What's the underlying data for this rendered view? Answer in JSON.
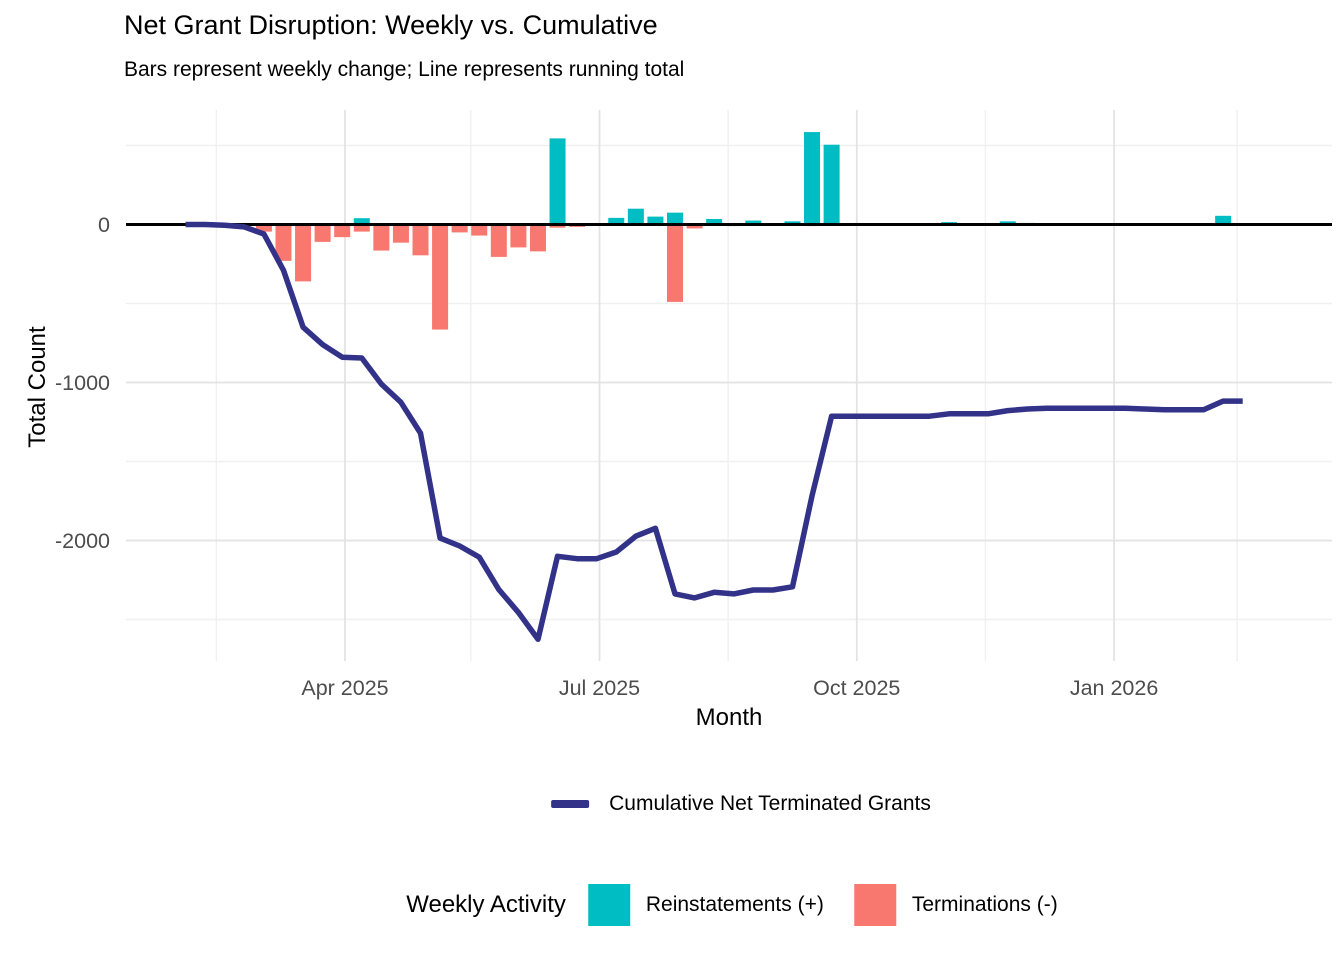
{
  "chart_data": {
    "type": "combo_bar_line",
    "title": "Net Grant Disruption: Weekly vs. Cumulative",
    "subtitle": "Bars represent weekly change; Line represents running total",
    "xlabel": "Month",
    "ylabel": "Total Count",
    "ylim": [
      -2800,
      740
    ],
    "y_ticks": [
      {
        "value": 0,
        "label": "0"
      },
      {
        "value": -1000,
        "label": "-1000"
      },
      {
        "value": -2000,
        "label": "-2000"
      }
    ],
    "y_minor_gridlines": [
      500,
      -500,
      -1500,
      -2500
    ],
    "x_ticks": [
      {
        "date": "2025-04-01",
        "label": "Apr 2025"
      },
      {
        "date": "2025-07-01",
        "label": "Jul 2025"
      },
      {
        "date": "2025-10-01",
        "label": "Oct 2025"
      },
      {
        "date": "2026-01-01",
        "label": "Jan 2026"
      }
    ],
    "x_minor_gridlines": [
      "2025-02-14",
      "2025-05-16",
      "2025-08-16",
      "2025-11-16",
      "2026-02-14"
    ],
    "grid": true,
    "legend_position": "bottom",
    "line_legend": "Cumulative Net Terminated Grants",
    "bar_legend": {
      "title": "Weekly Activity",
      "items": [
        {
          "label": "Reinstatements (+)",
          "color": "#00BCC3"
        },
        {
          "label": "Terminations (-)",
          "color": "#F8776E"
        }
      ]
    },
    "colors": {
      "reinstatement_bar": "#00BCC3",
      "termination_bar": "#F8776E",
      "cumulative_line": "#333289",
      "zero_line": "#000000",
      "grid_major": "#E3E3E3",
      "grid_minor": "#F0F0F0",
      "tick_text": "#4D4D4D"
    },
    "series_notes": "weeks[].r = weekly reinstatements (+), weeks[].t = weekly terminations (-), weeks[].c = cumulative net total (line)",
    "weeks": [
      {
        "d": "2025-02-03",
        "r": 0,
        "t": 0,
        "c": 0
      },
      {
        "d": "2025-02-10",
        "r": 0,
        "t": 0,
        "c": 0
      },
      {
        "d": "2025-02-17",
        "r": 0,
        "t": -5,
        "c": -5
      },
      {
        "d": "2025-02-24",
        "r": 0,
        "t": -10,
        "c": -15
      },
      {
        "d": "2025-03-03",
        "r": 0,
        "t": -45,
        "c": -60
      },
      {
        "d": "2025-03-10",
        "r": 0,
        "t": -230,
        "c": -290
      },
      {
        "d": "2025-03-17",
        "r": 0,
        "t": -360,
        "c": -650
      },
      {
        "d": "2025-03-24",
        "r": 0,
        "t": -110,
        "c": -760
      },
      {
        "d": "2025-03-31",
        "r": 0,
        "t": -80,
        "c": -840
      },
      {
        "d": "2025-04-07",
        "r": 40,
        "t": -45,
        "c": -845
      },
      {
        "d": "2025-04-14",
        "r": 0,
        "t": -165,
        "c": -1010
      },
      {
        "d": "2025-04-21",
        "r": 0,
        "t": -115,
        "c": -1125
      },
      {
        "d": "2025-04-28",
        "r": 0,
        "t": -195,
        "c": -1320
      },
      {
        "d": "2025-05-05",
        "r": 0,
        "t": -665,
        "c": -1985
      },
      {
        "d": "2025-05-12",
        "r": 0,
        "t": -50,
        "c": -2035
      },
      {
        "d": "2025-05-19",
        "r": 0,
        "t": -70,
        "c": -2105
      },
      {
        "d": "2025-05-26",
        "r": 0,
        "t": -205,
        "c": -2310
      },
      {
        "d": "2025-06-02",
        "r": 0,
        "t": -145,
        "c": -2455
      },
      {
        "d": "2025-06-09",
        "r": 0,
        "t": -170,
        "c": -2625
      },
      {
        "d": "2025-06-16",
        "r": 545,
        "t": -20,
        "c": -2100
      },
      {
        "d": "2025-06-23",
        "r": 0,
        "t": -15,
        "c": -2115
      },
      {
        "d": "2025-06-30",
        "r": 0,
        "t": 0,
        "c": -2115
      },
      {
        "d": "2025-07-07",
        "r": 42,
        "t": 0,
        "c": -2073
      },
      {
        "d": "2025-07-14",
        "r": 100,
        "t": 0,
        "c": -1973
      },
      {
        "d": "2025-07-21",
        "r": 50,
        "t": 0,
        "c": -1923
      },
      {
        "d": "2025-07-28",
        "r": 75,
        "t": -490,
        "c": -2338
      },
      {
        "d": "2025-08-04",
        "r": 0,
        "t": -25,
        "c": -2363
      },
      {
        "d": "2025-08-11",
        "r": 35,
        "t": 0,
        "c": -2328
      },
      {
        "d": "2025-08-18",
        "r": 0,
        "t": -10,
        "c": -2338
      },
      {
        "d": "2025-08-25",
        "r": 25,
        "t": 0,
        "c": -2313
      },
      {
        "d": "2025-09-01",
        "r": 0,
        "t": 0,
        "c": -2313
      },
      {
        "d": "2025-09-08",
        "r": 20,
        "t": 0,
        "c": -2293
      },
      {
        "d": "2025-09-15",
        "r": 585,
        "t": -10,
        "c": -1718
      },
      {
        "d": "2025-09-22",
        "r": 505,
        "t": 0,
        "c": -1213
      },
      {
        "d": "2025-09-29",
        "r": 0,
        "t": 0,
        "c": -1213
      },
      {
        "d": "2025-10-06",
        "r": 0,
        "t": 0,
        "c": -1213
      },
      {
        "d": "2025-10-13",
        "r": 0,
        "t": 0,
        "c": -1213
      },
      {
        "d": "2025-10-20",
        "r": 0,
        "t": 0,
        "c": -1213
      },
      {
        "d": "2025-10-27",
        "r": 0,
        "t": 0,
        "c": -1213
      },
      {
        "d": "2025-11-03",
        "r": 15,
        "t": 0,
        "c": -1198
      },
      {
        "d": "2025-11-10",
        "r": 0,
        "t": 0,
        "c": -1198
      },
      {
        "d": "2025-11-17",
        "r": 0,
        "t": 0,
        "c": -1198
      },
      {
        "d": "2025-11-24",
        "r": 20,
        "t": 0,
        "c": -1178
      },
      {
        "d": "2025-12-01",
        "r": 10,
        "t": 0,
        "c": -1168
      },
      {
        "d": "2025-12-08",
        "r": 5,
        "t": 0,
        "c": -1163
      },
      {
        "d": "2025-12-15",
        "r": 0,
        "t": 0,
        "c": -1163
      },
      {
        "d": "2025-12-22",
        "r": 0,
        "t": 0,
        "c": -1163
      },
      {
        "d": "2025-12-29",
        "r": 0,
        "t": 0,
        "c": -1163
      },
      {
        "d": "2026-01-05",
        "r": 0,
        "t": 0,
        "c": -1163
      },
      {
        "d": "2026-01-12",
        "r": 0,
        "t": -5,
        "c": -1168
      },
      {
        "d": "2026-01-19",
        "r": 0,
        "t": -5,
        "c": -1173
      },
      {
        "d": "2026-01-26",
        "r": 0,
        "t": 0,
        "c": -1173
      },
      {
        "d": "2026-02-02",
        "r": 0,
        "t": 0,
        "c": -1173
      },
      {
        "d": "2026-02-09",
        "r": 55,
        "t": 0,
        "c": -1118
      },
      {
        "d": "2026-02-16",
        "r": 0,
        "t": 0,
        "c": -1118
      }
    ]
  }
}
